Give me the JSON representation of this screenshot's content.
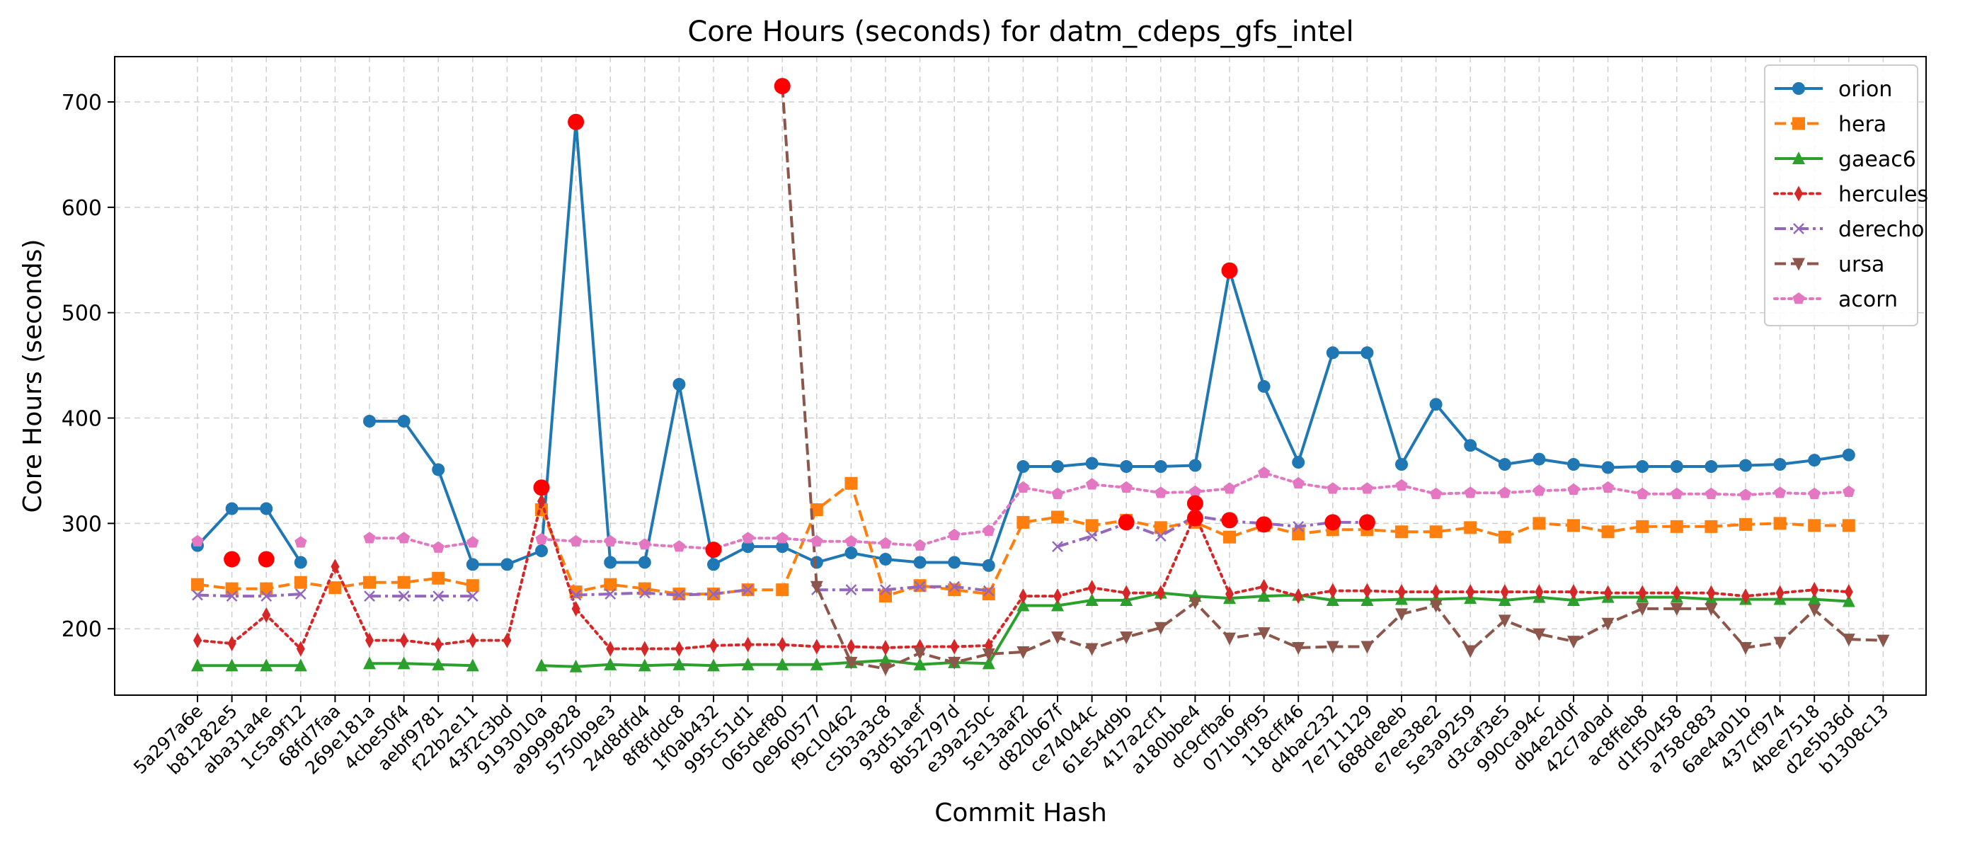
{
  "chart_data": {
    "type": "line",
    "title": "Core Hours (seconds) for datm_cdeps_gfs_intel",
    "xlabel": "Commit Hash",
    "ylabel": "Core Hours (seconds)",
    "ylim": [
      137,
      743
    ],
    "yticks": [
      200,
      300,
      400,
      500,
      600,
      700
    ],
    "grid": true,
    "legend_position": "top-right",
    "categories": [
      "5a297a6e",
      "b81282e5",
      "aba31a4e",
      "1c5a9f12",
      "68fd7faa",
      "269e181a",
      "4cbe50f4",
      "aebf9781",
      "f22b2e11",
      "43f2c3bd",
      "9193010a",
      "a9999828",
      "5750b9e3",
      "24d8dfd4",
      "8f8fddc8",
      "1f0ab432",
      "995c51d1",
      "065def80",
      "0e960577",
      "f9c10462",
      "c5b3a3c8",
      "93d51aef",
      "8b52797d",
      "e39a250c",
      "5e13aaf2",
      "d820b67f",
      "ce74044c",
      "61e54d9b",
      "417a2cf1",
      "a180bbe4",
      "dc9cfba6",
      "071b9f95",
      "118cff46",
      "d4bac232",
      "7e711129",
      "688de8eb",
      "e7ee38e2",
      "5e3a9259",
      "d3caf3e5",
      "990ca94c",
      "db4e2d0f",
      "42c7a0ad",
      "ac8ffeb8",
      "d1f50458",
      "a758c883",
      "6ae4a01b",
      "437cf974",
      "4bee7518",
      "d2e5b36d",
      "b1308c13"
    ],
    "series": [
      {
        "name": "orion",
        "color": "#1f77b4",
        "marker": "circle",
        "dash": "solid",
        "values": [
          279,
          314,
          314,
          263,
          null,
          397,
          397,
          351,
          261,
          261,
          274,
          681,
          263,
          263,
          432,
          261,
          278,
          278,
          263,
          272,
          266,
          263,
          263,
          260,
          354,
          354,
          357,
          354,
          354,
          355,
          540,
          430,
          358,
          462,
          462,
          356,
          413,
          374,
          356,
          361,
          356,
          353,
          354,
          354,
          354,
          355,
          356,
          360,
          365,
          null
        ]
      },
      {
        "name": "hera",
        "color": "#ff7f0e",
        "marker": "square",
        "dash": "dashed",
        "values": [
          242,
          238,
          238,
          244,
          239,
          244,
          244,
          248,
          241,
          null,
          313,
          235,
          242,
          238,
          233,
          233,
          237,
          237,
          313,
          338,
          231,
          241,
          237,
          233,
          301,
          306,
          298,
          303,
          296,
          301,
          287,
          298,
          290,
          294,
          294,
          292,
          292,
          296,
          287,
          300,
          298,
          292,
          297,
          297,
          297,
          299,
          300,
          298,
          298,
          null
        ]
      },
      {
        "name": "gaeac6",
        "color": "#2ca02c",
        "marker": "triangle-up",
        "dash": "solid",
        "values": [
          165,
          165,
          165,
          165,
          null,
          167,
          167,
          166,
          165,
          null,
          165,
          164,
          166,
          165,
          166,
          165,
          166,
          166,
          166,
          168,
          170,
          166,
          168,
          167,
          222,
          222,
          227,
          227,
          234,
          231,
          229,
          231,
          232,
          227,
          227,
          228,
          228,
          229,
          227,
          230,
          227,
          230,
          230,
          230,
          228,
          228,
          228,
          228,
          226,
          null
        ]
      },
      {
        "name": "hercules",
        "color": "#d62728",
        "marker": "diamond",
        "dash": "dotted",
        "values": [
          189,
          186,
          213,
          181,
          259,
          189,
          189,
          185,
          189,
          189,
          321,
          219,
          181,
          181,
          181,
          184,
          185,
          185,
          183,
          183,
          182,
          183,
          183,
          184,
          231,
          231,
          239,
          234,
          234,
          308,
          233,
          240,
          231,
          236,
          236,
          235,
          235,
          235,
          235,
          235,
          235,
          234,
          234,
          234,
          234,
          231,
          234,
          237,
          235,
          null
        ]
      },
      {
        "name": "derecho",
        "color": "#9467bd",
        "marker": "x",
        "dash": "dashdot",
        "values": [
          232,
          231,
          231,
          233,
          null,
          231,
          231,
          231,
          231,
          null,
          null,
          232,
          233,
          234,
          232,
          233,
          237,
          null,
          237,
          237,
          237,
          240,
          240,
          236,
          null,
          278,
          288,
          300,
          288,
          307,
          302,
          300,
          297,
          301,
          301,
          null,
          null,
          null,
          null,
          null,
          null,
          null,
          null,
          null,
          null,
          null,
          null,
          null,
          null,
          null
        ]
      },
      {
        "name": "ursa",
        "color": "#8c564b",
        "marker": "triangle-down",
        "dash": "dashed",
        "values": [
          null,
          null,
          null,
          null,
          null,
          null,
          null,
          null,
          null,
          null,
          null,
          null,
          null,
          null,
          null,
          null,
          null,
          715,
          240,
          168,
          162,
          177,
          168,
          176,
          178,
          192,
          181,
          192,
          201,
          225,
          191,
          196,
          182,
          183,
          183,
          214,
          222,
          179,
          208,
          195,
          188,
          205,
          219,
          219,
          219,
          182,
          187,
          218,
          190,
          189
        ]
      },
      {
        "name": "acorn",
        "color": "#e377c2",
        "marker": "pentagon",
        "dash": "dotted",
        "values": [
          283,
          null,
          null,
          282,
          null,
          286,
          286,
          277,
          282,
          null,
          285,
          283,
          283,
          280,
          278,
          276,
          286,
          286,
          283,
          283,
          281,
          279,
          289,
          293,
          334,
          328,
          337,
          334,
          329,
          330,
          333,
          348,
          338,
          333,
          333,
          336,
          328,
          329,
          329,
          331,
          332,
          334,
          328,
          328,
          328,
          327,
          329,
          328,
          330,
          null
        ]
      }
    ],
    "highlight_points": [
      {
        "x": "b81282e5",
        "y": 266
      },
      {
        "x": "aba31a4e",
        "y": 266
      },
      {
        "x": "9193010a",
        "y": 334
      },
      {
        "x": "a9999828",
        "y": 681
      },
      {
        "x": "1f0ab432",
        "y": 275
      },
      {
        "x": "065def80",
        "y": 715
      },
      {
        "x": "61e54d9b",
        "y": 301
      },
      {
        "x": "a180bbe4",
        "y": 319
      },
      {
        "x": "a180bbe4",
        "y": 305
      },
      {
        "x": "dc9cfba6",
        "y": 540
      },
      {
        "x": "dc9cfba6",
        "y": 303
      },
      {
        "x": "071b9f95",
        "y": 299
      },
      {
        "x": "d4bac232",
        "y": 301
      },
      {
        "x": "7e711129",
        "y": 301
      }
    ],
    "highlight_color": "#ff0000"
  }
}
